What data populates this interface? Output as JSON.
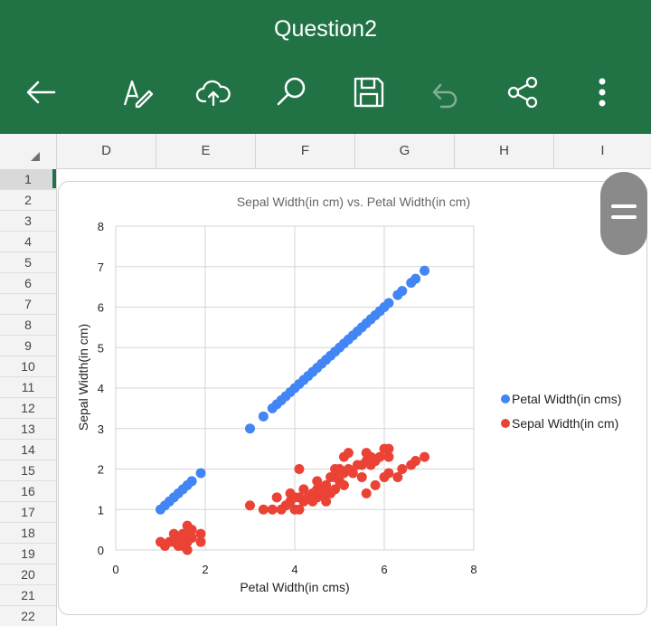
{
  "app": {
    "title": "Question2",
    "accent": "#217346",
    "toolbar": [
      {
        "icon": "back-arrow-icon"
      },
      {
        "icon": "edit-pen-icon"
      },
      {
        "icon": "cloud-upload-icon"
      },
      {
        "icon": "search-icon"
      },
      {
        "icon": "save-icon"
      },
      {
        "icon": "undo-icon"
      },
      {
        "icon": "share-icon"
      },
      {
        "icon": "more-vertical-icon"
      }
    ]
  },
  "sheet": {
    "columns": [
      "D",
      "E",
      "F",
      "G",
      "H",
      "I"
    ],
    "rows": [
      "1",
      "2",
      "3",
      "4",
      "5",
      "6",
      "7",
      "8",
      "9",
      "10",
      "11",
      "12",
      "13",
      "14",
      "15",
      "16",
      "17",
      "18",
      "19",
      "20",
      "21",
      "22"
    ],
    "selected_row": "1"
  },
  "chart_data": {
    "type": "scatter",
    "title": "Sepal Width(in cm) vs. Petal Width(in cm)",
    "xlabel": "Petal Width(in cms)",
    "ylabel": "Sepal Width(in cm)",
    "xlim": [
      0,
      8
    ],
    "ylim": [
      0,
      8
    ],
    "xticks": [
      "0",
      "2",
      "4",
      "6",
      "8"
    ],
    "yticks": [
      "0",
      "1",
      "2",
      "3",
      "4",
      "5",
      "6",
      "7",
      "8"
    ],
    "grid": true,
    "legend_position": "right",
    "series": [
      {
        "name": "Petal Width(in cms)",
        "color": "#4285f4",
        "points": [
          [
            1.0,
            1.0
          ],
          [
            1.1,
            1.1
          ],
          [
            1.2,
            1.2
          ],
          [
            1.3,
            1.3
          ],
          [
            1.4,
            1.4
          ],
          [
            1.5,
            1.5
          ],
          [
            1.6,
            1.6
          ],
          [
            1.7,
            1.7
          ],
          [
            1.9,
            1.9
          ],
          [
            3.0,
            3.0
          ],
          [
            3.3,
            3.3
          ],
          [
            3.5,
            3.5
          ],
          [
            3.6,
            3.6
          ],
          [
            3.7,
            3.7
          ],
          [
            3.8,
            3.8
          ],
          [
            3.9,
            3.9
          ],
          [
            4.0,
            4.0
          ],
          [
            4.1,
            4.1
          ],
          [
            4.2,
            4.2
          ],
          [
            4.3,
            4.3
          ],
          [
            4.4,
            4.4
          ],
          [
            4.5,
            4.5
          ],
          [
            4.6,
            4.6
          ],
          [
            4.7,
            4.7
          ],
          [
            4.8,
            4.8
          ],
          [
            4.9,
            4.9
          ],
          [
            5.0,
            5.0
          ],
          [
            5.1,
            5.1
          ],
          [
            5.2,
            5.2
          ],
          [
            5.3,
            5.3
          ],
          [
            5.4,
            5.4
          ],
          [
            5.5,
            5.5
          ],
          [
            5.6,
            5.6
          ],
          [
            5.7,
            5.7
          ],
          [
            5.8,
            5.8
          ],
          [
            5.9,
            5.9
          ],
          [
            6.0,
            6.0
          ],
          [
            6.1,
            6.1
          ],
          [
            6.3,
            6.3
          ],
          [
            6.4,
            6.4
          ],
          [
            6.6,
            6.6
          ],
          [
            6.7,
            6.7
          ],
          [
            6.9,
            6.9
          ]
        ]
      },
      {
        "name": "Sepal Width(in cm)",
        "color": "#ea4335",
        "points": [
          [
            1.0,
            0.2
          ],
          [
            1.1,
            0.1
          ],
          [
            1.2,
            0.2
          ],
          [
            1.3,
            0.2
          ],
          [
            1.3,
            0.4
          ],
          [
            1.4,
            0.2
          ],
          [
            1.4,
            0.3
          ],
          [
            1.4,
            0.1
          ],
          [
            1.5,
            0.2
          ],
          [
            1.5,
            0.4
          ],
          [
            1.5,
            0.1
          ],
          [
            1.6,
            0.2
          ],
          [
            1.6,
            0.6
          ],
          [
            1.6,
            0.4
          ],
          [
            1.7,
            0.3
          ],
          [
            1.7,
            0.5
          ],
          [
            1.9,
            0.2
          ],
          [
            1.9,
            0.4
          ],
          [
            1.5,
            0.3
          ],
          [
            1.6,
            0.0
          ],
          [
            3.0,
            1.1
          ],
          [
            3.3,
            1.0
          ],
          [
            3.5,
            1.0
          ],
          [
            3.6,
            1.3
          ],
          [
            3.7,
            1.0
          ],
          [
            3.8,
            1.1
          ],
          [
            3.9,
            1.2
          ],
          [
            3.9,
            1.4
          ],
          [
            4.0,
            1.0
          ],
          [
            4.0,
            1.3
          ],
          [
            4.1,
            1.0
          ],
          [
            4.1,
            1.3
          ],
          [
            4.2,
            1.2
          ],
          [
            4.2,
            1.5
          ],
          [
            4.3,
            1.3
          ],
          [
            4.4,
            1.2
          ],
          [
            4.4,
            1.4
          ],
          [
            4.5,
            1.5
          ],
          [
            4.5,
            1.3
          ],
          [
            4.6,
            1.4
          ],
          [
            4.6,
            1.5
          ],
          [
            4.7,
            1.2
          ],
          [
            4.7,
            1.4
          ],
          [
            4.7,
            1.6
          ],
          [
            4.8,
            1.8
          ],
          [
            4.8,
            1.4
          ],
          [
            4.9,
            1.5
          ],
          [
            4.9,
            1.8
          ],
          [
            5.0,
            1.7
          ],
          [
            5.0,
            2.0
          ],
          [
            5.1,
            1.6
          ],
          [
            5.1,
            1.9
          ],
          [
            5.1,
            2.3
          ],
          [
            5.2,
            2.0
          ],
          [
            5.3,
            1.9
          ],
          [
            5.4,
            2.1
          ],
          [
            5.5,
            2.1
          ],
          [
            5.5,
            1.8
          ],
          [
            5.6,
            2.2
          ],
          [
            5.6,
            1.4
          ],
          [
            5.7,
            2.3
          ],
          [
            5.7,
            2.1
          ],
          [
            5.8,
            1.6
          ],
          [
            5.8,
            2.2
          ],
          [
            5.9,
            2.3
          ],
          [
            6.0,
            1.8
          ],
          [
            6.0,
            2.5
          ],
          [
            6.1,
            1.9
          ],
          [
            6.1,
            2.3
          ],
          [
            6.3,
            1.8
          ],
          [
            6.4,
            2.0
          ],
          [
            6.6,
            2.1
          ],
          [
            6.7,
            2.2
          ],
          [
            6.9,
            2.3
          ],
          [
            4.1,
            2.0
          ],
          [
            5.2,
            2.4
          ],
          [
            5.6,
            2.4
          ],
          [
            6.1,
            2.5
          ],
          [
            4.9,
            2.0
          ],
          [
            4.5,
            1.7
          ]
        ]
      }
    ]
  }
}
